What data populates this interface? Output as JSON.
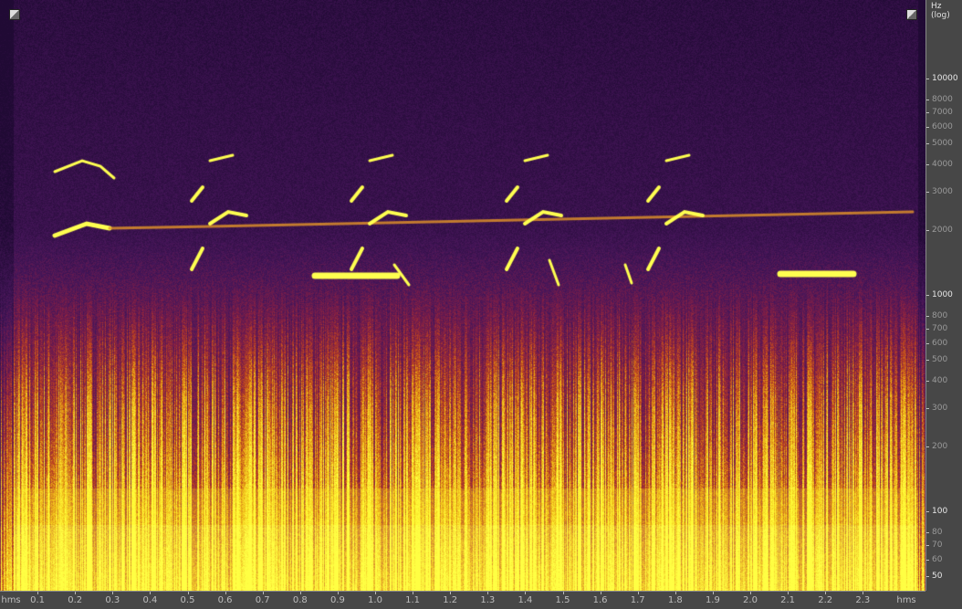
{
  "view": "spectral-frequency-display",
  "colormap": {
    "low": "#2a0f45",
    "mid": "#8b1e3a",
    "high": "#ffff3a"
  },
  "frequency_axis": {
    "label": "Hz (log)",
    "ticks": [
      {
        "value": 10000,
        "label": "10000",
        "major": true
      },
      {
        "value": 8000,
        "label": "8000"
      },
      {
        "value": 7000,
        "label": "7000"
      },
      {
        "value": 6000,
        "label": "6000"
      },
      {
        "value": 5000,
        "label": "5000"
      },
      {
        "value": 4000,
        "label": "4000"
      },
      {
        "value": 3000,
        "label": "3000"
      },
      {
        "value": 2000,
        "label": "2000"
      },
      {
        "value": 1000,
        "label": "1000",
        "major": true
      },
      {
        "value": 800,
        "label": "800"
      },
      {
        "value": 700,
        "label": "700"
      },
      {
        "value": 600,
        "label": "600"
      },
      {
        "value": 500,
        "label": "500"
      },
      {
        "value": 400,
        "label": "400"
      },
      {
        "value": 300,
        "label": "300"
      },
      {
        "value": 200,
        "label": "200"
      },
      {
        "value": 100,
        "label": "100",
        "major": true
      },
      {
        "value": 80,
        "label": "80"
      },
      {
        "value": 70,
        "label": "70"
      },
      {
        "value": 60,
        "label": "60"
      },
      {
        "value": 50,
        "label": "50",
        "major": true
      }
    ]
  },
  "time_axis": {
    "unit_left": "hms",
    "unit_right": "hms",
    "ticks": [
      "0.1",
      "0.2",
      "0.3",
      "0.4",
      "0.5",
      "0.6",
      "0.7",
      "0.8",
      "0.9",
      "1.0",
      "1.1",
      "1.2",
      "1.3",
      "1.4",
      "1.5",
      "1.6",
      "1.7",
      "1.8",
      "1.9",
      "2.0",
      "2.1",
      "2.2",
      "2.3"
    ]
  }
}
